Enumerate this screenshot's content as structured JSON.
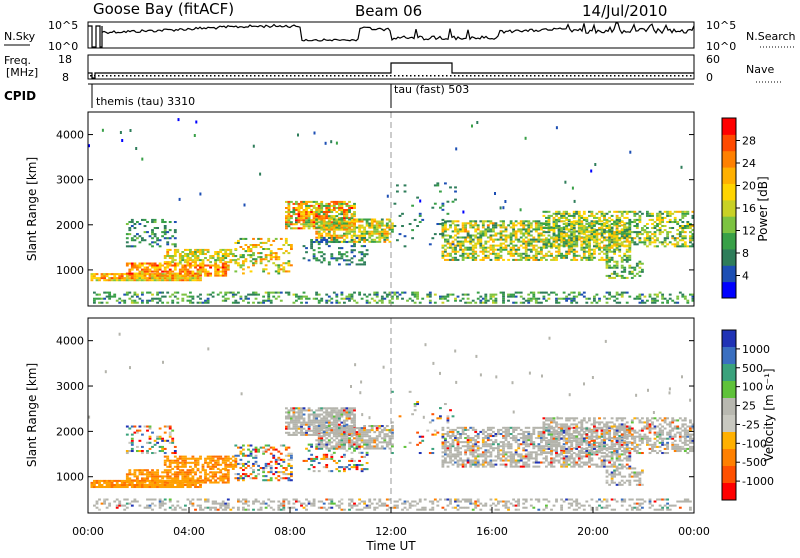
{
  "header": {
    "station": "Goose Bay (fitACF)",
    "beam": "Beam 06",
    "date": "14/Jul/2010"
  },
  "noise_panel": {
    "left_label": "N.Sky",
    "right_label": "N.Search",
    "left_ticks": [
      "10^5",
      "10^0"
    ],
    "right_ticks": [
      "10^5",
      "10^0"
    ]
  },
  "freq_panel": {
    "left_label_1": "Freq.",
    "left_label_2": "[MHz]",
    "right_label": "Nave",
    "left_ticks": [
      "18",
      "8"
    ],
    "right_ticks": [
      "60",
      "0"
    ]
  },
  "cpid": {
    "label": "CPID",
    "segments": [
      {
        "text": "themis (tau) 3310"
      },
      {
        "text": "tau (fast) 503"
      }
    ]
  },
  "colors": {
    "power_scale": [
      "#0000ff",
      "#1d4fb4",
      "#2e7d5a",
      "#38a047",
      "#7cc341",
      "#c8d126",
      "#ffd400",
      "#ffb000",
      "#ff8000",
      "#ff4a00",
      "#ff0000"
    ],
    "velocity_scale": [
      "#2033b5",
      "#3a6fc0",
      "#3aa27c",
      "#5fc23a",
      "#b8b8b0",
      "#c8c8c0",
      "#ffb000",
      "#ff8000",
      "#ff5000",
      "#ff0000"
    ],
    "ground_scatter": "#b4b4ac"
  },
  "chart_data": [
    {
      "type": "heatmap",
      "title": "",
      "xlabel": "",
      "ylabel": "Slant Range [km]",
      "yticks": [
        "1000",
        "2000",
        "3000",
        "4000"
      ],
      "ylim": [
        200,
        4500
      ],
      "xlim": [
        0,
        24
      ],
      "colorbar": {
        "label": "Power [dB]",
        "ticks": [
          "4",
          "8",
          "12",
          "16",
          "20",
          "24",
          "28"
        ],
        "range": [
          0,
          30
        ]
      }
    },
    {
      "type": "heatmap",
      "title": "",
      "xlabel": "Time UT",
      "ylabel": "Slant Range [km]",
      "yticks": [
        "1000",
        "2000",
        "3000",
        "4000"
      ],
      "xticks": [
        "00:00",
        "04:00",
        "08:00",
        "12:00",
        "16:00",
        "20:00",
        "00:00"
      ],
      "ylim": [
        200,
        4500
      ],
      "xlim": [
        0,
        24
      ],
      "colorbar": {
        "label": "Velocity [m s⁻¹]",
        "ticks": [
          "1000",
          "500",
          "100",
          "25",
          "-25",
          "-100",
          "-500",
          "-1000"
        ]
      }
    }
  ]
}
